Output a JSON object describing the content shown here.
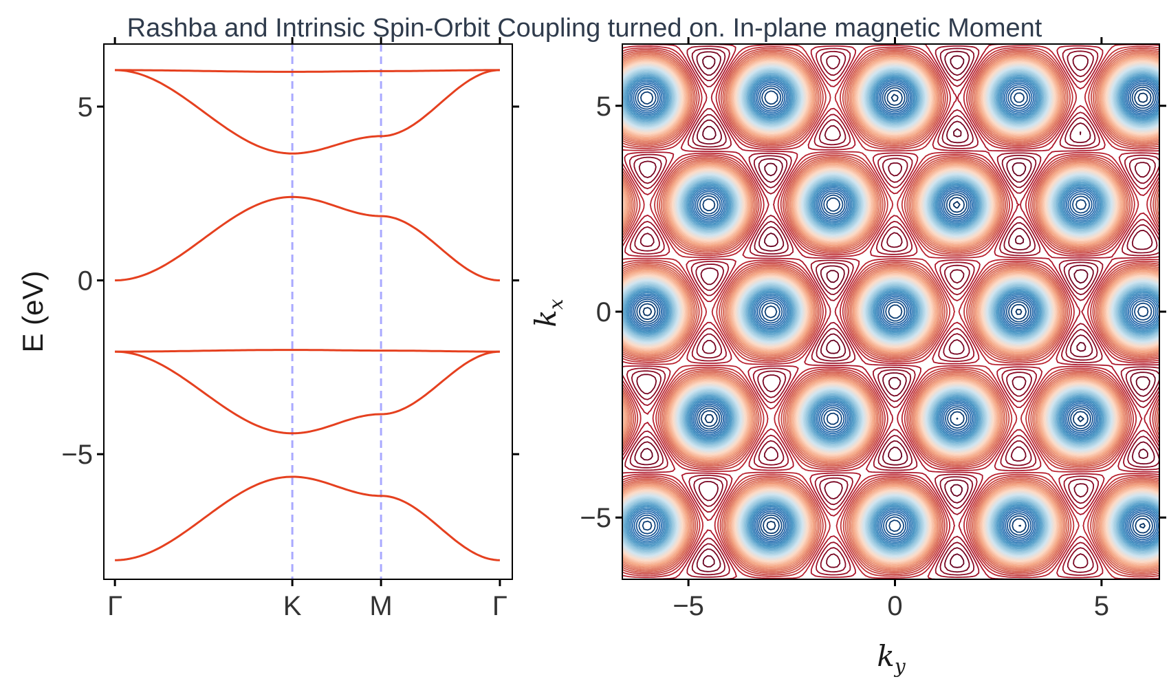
{
  "title": "Rashba and Intrinsic Spin-Orbit Coupling turned on. In-plane magnetic Moment",
  "chart_data": [
    {
      "type": "line",
      "xlabel": "",
      "ylabel": "E (eV)",
      "ylim": [
        -8.6,
        6.8
      ],
      "x_ticks": [
        {
          "pos": 0.0,
          "label": "Γ"
        },
        {
          "pos": 1.0,
          "label": "K"
        },
        {
          "pos": 1.5,
          "label": "M"
        },
        {
          "pos": 2.17,
          "label": "Γ"
        }
      ],
      "y_ticks": [
        {
          "value": 5,
          "label": "5"
        },
        {
          "value": 0,
          "label": "0"
        },
        {
          "value": -5,
          "label": "−5"
        }
      ],
      "vlines": [
        1.0,
        1.5
      ],
      "line_color": "#e5401f",
      "vline_color": "#a9a9ff",
      "series": [
        {
          "at_gamma": 6.05,
          "at_K": 6.0,
          "at_M": 6.02,
          "end_gamma": 6.05
        },
        {
          "at_gamma": 6.05,
          "at_K": 3.65,
          "at_M": 4.15,
          "end_gamma": 6.05
        },
        {
          "at_gamma": 0.0,
          "at_K": 2.4,
          "at_M": 1.85,
          "end_gamma": 0.0
        },
        {
          "at_gamma": -2.05,
          "at_K": -2.0,
          "at_M": -2.02,
          "end_gamma": -2.05
        },
        {
          "at_gamma": -2.05,
          "at_K": -4.4,
          "at_M": -3.85,
          "end_gamma": -2.05
        },
        {
          "at_gamma": -8.05,
          "at_K": -5.65,
          "at_M": -6.2,
          "end_gamma": -8.05
        }
      ]
    },
    {
      "type": "contour",
      "xlabel": "k_y",
      "ylabel": "k_x",
      "xlim": [
        -6.6,
        6.4
      ],
      "ylim": [
        -6.5,
        6.5
      ],
      "x_ticks": [
        {
          "value": -5,
          "label": "−5"
        },
        {
          "value": 0,
          "label": "0"
        },
        {
          "value": 5,
          "label": "5"
        }
      ],
      "y_ticks": [
        {
          "value": 5,
          "label": "5"
        },
        {
          "value": 0,
          "label": "0"
        },
        {
          "value": -5,
          "label": "−5"
        }
      ],
      "colormap": "RdBu",
      "colors": [
        "#67001f",
        "#b2182b",
        "#d6604d",
        "#f4a582",
        "#fddbc7",
        "#d1e5f0",
        "#92c5de",
        "#4393c3",
        "#2166ac",
        "#053061"
      ],
      "levels": 40
    }
  ]
}
